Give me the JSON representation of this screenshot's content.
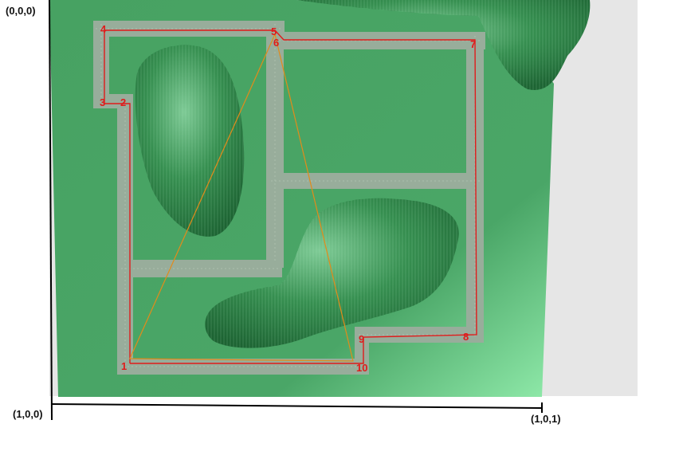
{
  "axes": {
    "origin_label": "(0,0,0)",
    "x_end_label": "(1,0,0)",
    "corner_label": "(1,0,1)"
  },
  "colors": {
    "background_gray": "#e6e6e6",
    "terrain_green": "#4aa465",
    "terrain_light": "#86e3a3",
    "wall_gray": "#98ad9b",
    "path_red": "#e01b1b",
    "triangle_orange": "#e38b1a",
    "hill_green": "#3ea25a"
  },
  "points": [
    {
      "label": "1"
    },
    {
      "label": "2"
    },
    {
      "label": "3"
    },
    {
      "label": "4"
    },
    {
      "label": "5"
    },
    {
      "label": "6"
    },
    {
      "label": "7"
    },
    {
      "label": "8"
    },
    {
      "label": "9"
    },
    {
      "label": "10"
    }
  ]
}
